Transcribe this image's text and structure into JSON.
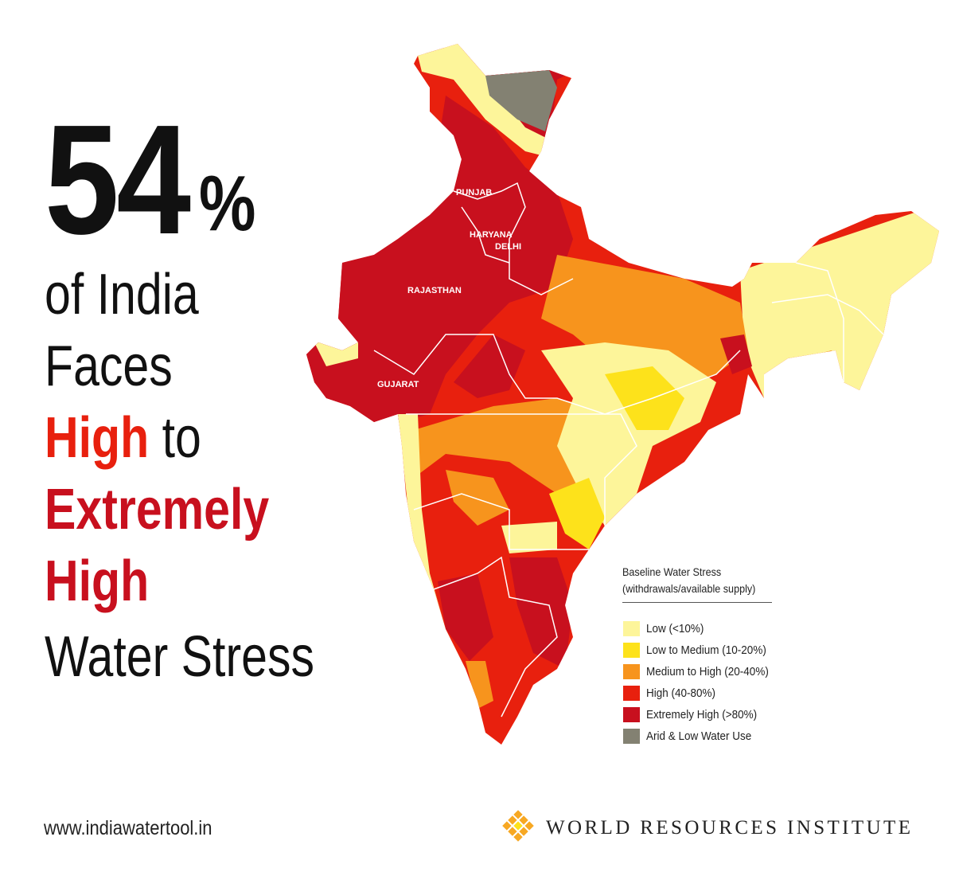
{
  "headline": {
    "number": "54",
    "unit": "%",
    "line1": "of India",
    "line2": "Faces",
    "high": "High",
    "to": "to",
    "extremely": "Extremely",
    "high2": "High",
    "water_stress": "Water Stress"
  },
  "map": {
    "labels": [
      "PUNJAB",
      "HARYANA",
      "DELHI",
      "RAJASTHAN",
      "GUJARAT"
    ]
  },
  "legend": {
    "title": "Baseline Water Stress",
    "subtitle": "(withdrawals/available supply)",
    "items": [
      {
        "label": "Low (<10%)",
        "color": "#fdf59a"
      },
      {
        "label": "Low to Medium (10-20%)",
        "color": "#fde21b"
      },
      {
        "label": "Medium to High (20-40%)",
        "color": "#f7941d"
      },
      {
        "label": "High (40-80%)",
        "color": "#e8200e"
      },
      {
        "label": "Extremely High (>80%)",
        "color": "#c8101e"
      },
      {
        "label": "Arid & Low Water Use",
        "color": "#838172"
      }
    ]
  },
  "footer": {
    "url": "www.indiawatertool.in",
    "organization": "WORLD RESOURCES INSTITUTE"
  }
}
